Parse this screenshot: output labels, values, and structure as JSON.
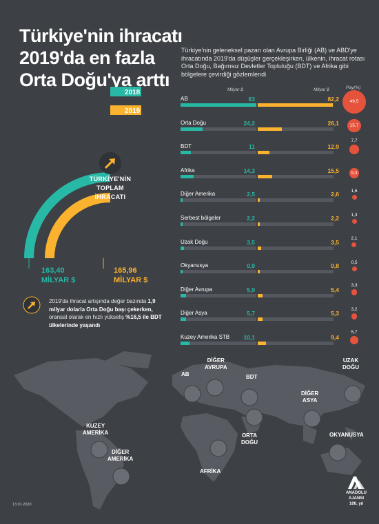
{
  "title": "Türkiye'nin ihracatı 2019'da en fazla Orta Doğu'ya arttı",
  "subtitle": "Türkiye'nin geleneksel pazarı olan Avrupa Birliği (AB) ve ABD'ye ihracatında 2019'da düşüşler gerçekleşirken, ülkenin, ihracat rotası Orta Doğu, Bağımsız Devletler Topluluğu (BDT) ve Afrika gibi bölgelere çevirdiği gözlemlendi",
  "totals": {
    "year_2018": "2018",
    "year_2019": "2019",
    "center_line1": "TÜRKİYE'NİN",
    "center_line2": "TOPLAM",
    "center_line3": "İHRACATI",
    "value_2018": "163,40",
    "value_2019": "165,96",
    "unit_2018": "MİLYAR $",
    "unit_2019": "MİLYAR $"
  },
  "note": {
    "part1": "2019'da ihracat artışında değer bazında ",
    "bold1": "1,9 milyar dolarla Orta Doğu başı çekerken,",
    "part2": " oransal olarak en hızlı yükseliş ",
    "bold2": "%16,5 ile BDT ülkelerinde yaşandı"
  },
  "table_headers": {
    "col2018": "Milyar $",
    "col2019": "Milyar $",
    "share": "Pay(%)"
  },
  "colors": {
    "teal": "#27b8a6",
    "yellow": "#fbb22e",
    "red": "#e5533d",
    "bg": "#3d4045",
    "track": "#55595f",
    "map": "#585c62"
  },
  "chart_data": {
    "type": "bar",
    "categories": [
      "AB",
      "Orta Doğu",
      "BDT",
      "Afrika",
      "Diğer Amerika",
      "Serbest bölgeler",
      "Uzak Doğu",
      "Okyanusya",
      "Diğer Avrupa",
      "Diğer Asya",
      "Kuzey Amerika STB"
    ],
    "series": [
      {
        "name": "2018",
        "values": [
          83,
          24.2,
          11,
          14.3,
          2.5,
          2.2,
          3.5,
          0.9,
          5.9,
          5.7,
          10.1
        ],
        "labels": [
          "83",
          "24,2",
          "11",
          "14,3",
          "2,5",
          "2,2",
          "3,5",
          "0,9",
          "5,9",
          "5,7",
          "10,1"
        ]
      },
      {
        "name": "2019",
        "values": [
          82.2,
          26.1,
          12.9,
          15.5,
          2.6,
          2.2,
          3.5,
          0.8,
          5.4,
          5.3,
          9.4
        ],
        "labels": [
          "82,2",
          "26,1",
          "12.9",
          "15,5",
          "2,6",
          "2,2",
          "3,5",
          "0,8",
          "5,4",
          "5,3",
          "9,4"
        ]
      }
    ],
    "share": [
      49.5,
      15.7,
      7.7,
      9.3,
      1.6,
      1.3,
      2.1,
      0.5,
      3.3,
      3.2,
      5.7
    ],
    "share_labels": [
      "49,5",
      "15,7",
      "7,7",
      "9,3",
      "1,6",
      "1,3",
      "2,1",
      "0,5",
      "3,3",
      "3,2",
      "5,7"
    ],
    "totals": {
      "2018": 163.4,
      "2019": 165.96
    }
  },
  "map_labels": [
    {
      "line1": "AB",
      "line2": ""
    },
    {
      "line1": "DİĞER",
      "line2": "AVRUPA"
    },
    {
      "line1": "BDT",
      "line2": ""
    },
    {
      "line1": "ORTA",
      "line2": "DOĞU"
    },
    {
      "line1": "AFRİKA",
      "line2": ""
    },
    {
      "line1": "DİĞER",
      "line2": "ASYA"
    },
    {
      "line1": "UZAK",
      "line2": "DOĞU"
    },
    {
      "line1": "OKYANUSYA",
      "line2": ""
    },
    {
      "line1": "KUZEY",
      "line2": "AMERİKA"
    },
    {
      "line1": "DİĞER",
      "line2": "AMERİKA"
    }
  ],
  "date": "13.01.2020",
  "logo": {
    "line1": "ANADOLU AJANSI",
    "line2": "100. yıl"
  }
}
